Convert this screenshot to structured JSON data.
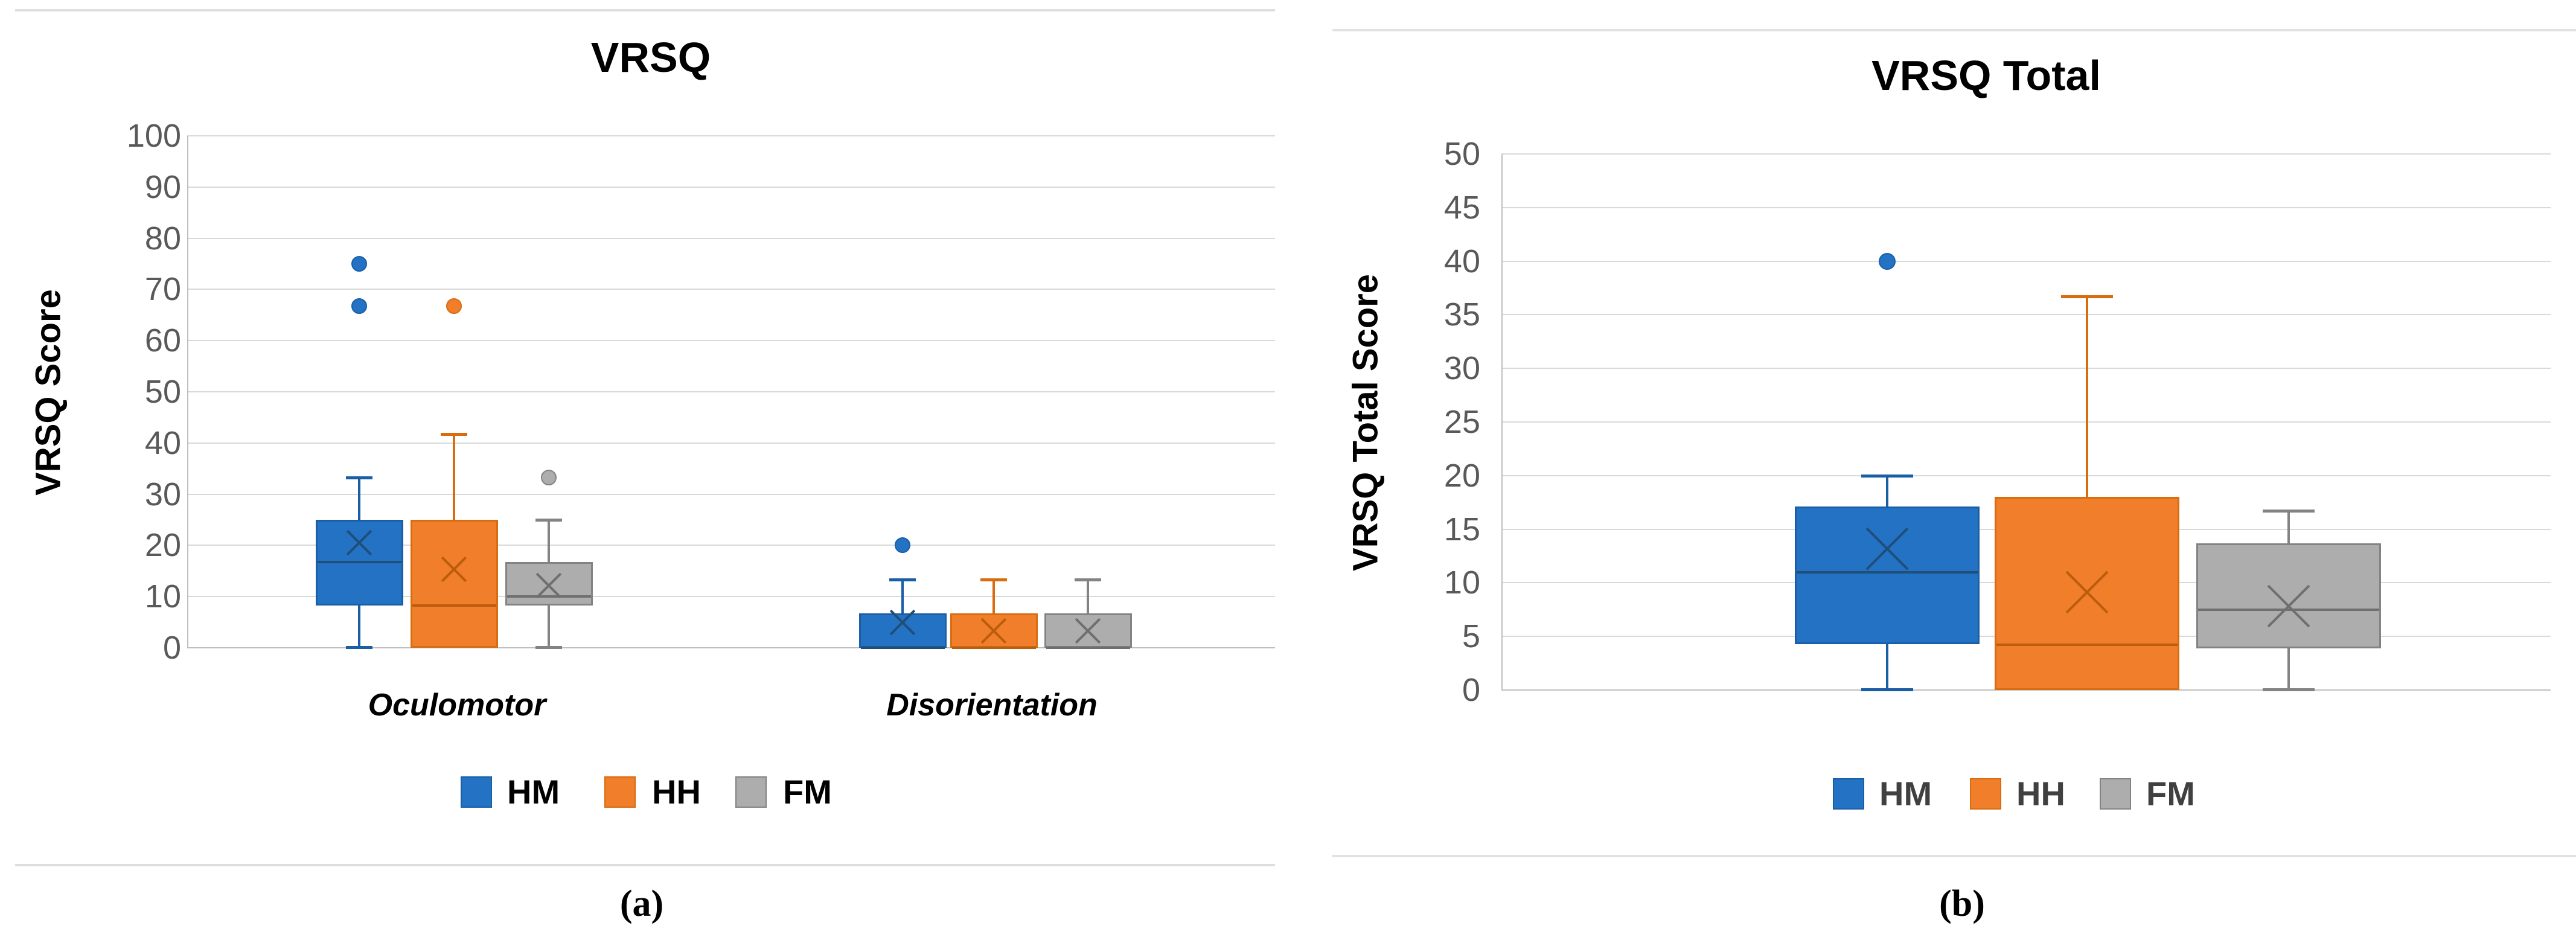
{
  "figure": {
    "caption_a": "(a)",
    "caption_b": "(b)"
  },
  "chart_data": [
    {
      "type": "boxplot",
      "title": "VRSQ",
      "ylabel": "VRSQ Score",
      "ylim": [
        0,
        100
      ],
      "ytick_step": 10,
      "grid": true,
      "legend_position": "bottom",
      "tick_label_color": "#595959",
      "legend_text_color": "#000000",
      "categories": [
        "Oculomotor",
        "Disorientation"
      ],
      "series": [
        {
          "name": "HM",
          "fill": "#2372C4",
          "border": "#1A5FA6",
          "dark": "#1F4E79",
          "boxes": [
            {
              "min": 0,
              "q1": 8.3,
              "median": 16.7,
              "q3": 25,
              "max": 33.3,
              "mean": 20.5,
              "outliers": [
                66.7,
                75
              ]
            },
            {
              "min": 0,
              "q1": 0,
              "median": 0,
              "q3": 6.7,
              "max": 13.3,
              "mean": 5,
              "outliers": [
                20
              ]
            }
          ]
        },
        {
          "name": "HH",
          "fill": "#F07E2A",
          "border": "#D96C0E",
          "dark": "#BC5D0E",
          "boxes": [
            {
              "min": 0,
              "q1": 0,
              "median": 8.3,
              "q3": 25,
              "max": 41.7,
              "mean": 15.3,
              "outliers": [
                66.7
              ]
            },
            {
              "min": 0,
              "q1": 0,
              "median": 0,
              "q3": 6.7,
              "max": 13.3,
              "mean": 3.3,
              "outliers": []
            }
          ]
        },
        {
          "name": "FM",
          "fill": "#ADADAD",
          "border": "#838383",
          "dark": "#6F6F6F",
          "boxes": [
            {
              "min": 0,
              "q1": 8.3,
              "median": 10,
              "q3": 16.7,
              "max": 25,
              "mean": 12.2,
              "outliers": [
                33.3
              ]
            },
            {
              "min": 0,
              "q1": 0,
              "median": 0,
              "q3": 6.7,
              "max": 13.3,
              "mean": 3.3,
              "outliers": []
            }
          ]
        }
      ]
    },
    {
      "type": "boxplot",
      "title": "VRSQ Total",
      "ylabel": "VRSQ Total Score",
      "ylim": [
        0,
        50
      ],
      "ytick_step": 5,
      "grid": true,
      "legend_position": "bottom",
      "tick_label_color": "#595959",
      "legend_text_color": "#404040",
      "categories": [
        ""
      ],
      "series": [
        {
          "name": "HM",
          "fill": "#2372C4",
          "border": "#1A5FA6",
          "dark": "#1F4E79",
          "boxes": [
            {
              "min": 0,
              "q1": 4.3,
              "median": 11,
              "q3": 17.1,
              "max": 20,
              "mean": 13.2,
              "outliers": [
                40
              ]
            }
          ]
        },
        {
          "name": "HH",
          "fill": "#F07E2A",
          "border": "#D96C0E",
          "dark": "#BC5D0E",
          "boxes": [
            {
              "min": 0,
              "q1": 0,
              "median": 4.2,
              "q3": 18,
              "max": 36.7,
              "mean": 9.1,
              "outliers": []
            }
          ]
        },
        {
          "name": "FM",
          "fill": "#ADADAD",
          "border": "#838383",
          "dark": "#6F6F6F",
          "boxes": [
            {
              "min": 0,
              "q1": 3.9,
              "median": 7.5,
              "q3": 13.7,
              "max": 16.7,
              "mean": 7.8,
              "outliers": []
            }
          ]
        }
      ]
    }
  ]
}
